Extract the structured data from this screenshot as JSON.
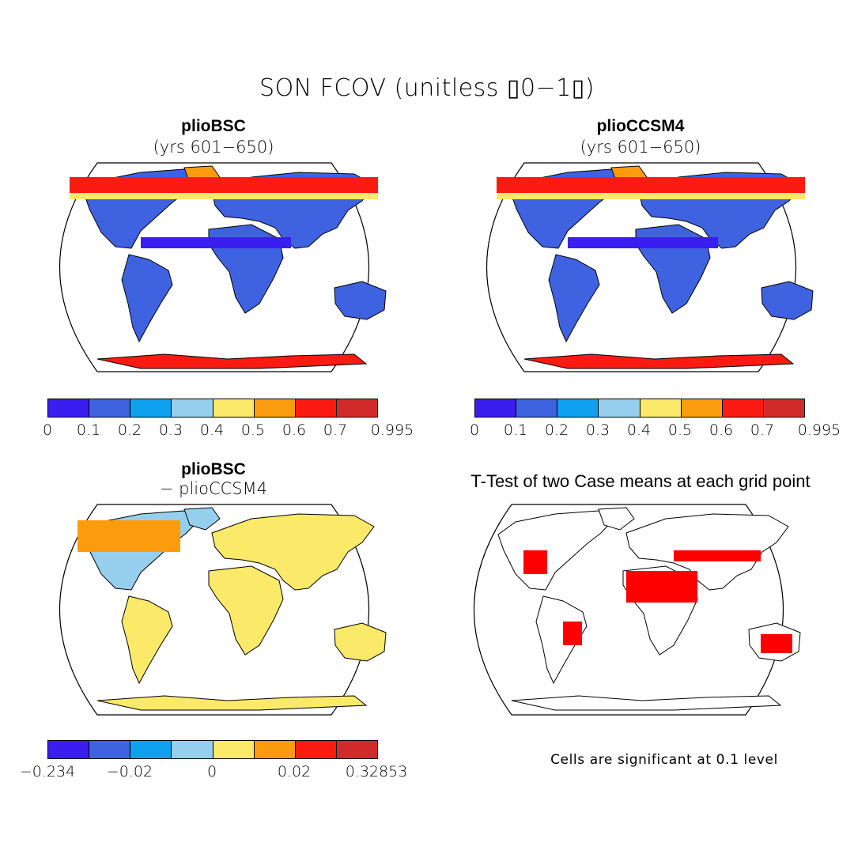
{
  "title": "SON FCOV (unitless ▯0−1▯)",
  "panels": [
    {
      "title": "plioBSC",
      "subtitle": "(yrs 601−650)",
      "kind": "abs"
    },
    {
      "title": "plioCCSM4",
      "subtitle": "(yrs 601−650)",
      "kind": "abs"
    },
    {
      "title": "plioBSC",
      "subtitle": "− plioCCSM4",
      "kind": "diff"
    },
    {
      "title": "T-Test of two Case means at each grid point",
      "subtitle": "",
      "kind": "ttest"
    }
  ],
  "colorbars": {
    "absolute": {
      "colors": [
        "#3a1ef0",
        "#3f63e0",
        "#10a0f0",
        "#96cfee",
        "#fbe96a",
        "#fb9c0f",
        "#fb1b12",
        "#d22a2a"
      ],
      "ticks": [
        "0",
        "0.1",
        "0.2",
        "0.3",
        "0.4",
        "0.5",
        "0.6",
        "0.7",
        "0.995"
      ]
    },
    "difference": {
      "colors": [
        "#3a1ef0",
        "#3f63e0",
        "#10a0f0",
        "#96cfee",
        "#fbe96a",
        "#fb9c0f",
        "#fb1b12",
        "#d22a2a"
      ],
      "ticks": [
        "−0.234",
        "−0.02",
        "0",
        "0.02",
        "0.32853"
      ]
    }
  },
  "significance_note": "Cells are significant at 0.1 level",
  "significance_color": "#ff0000"
}
